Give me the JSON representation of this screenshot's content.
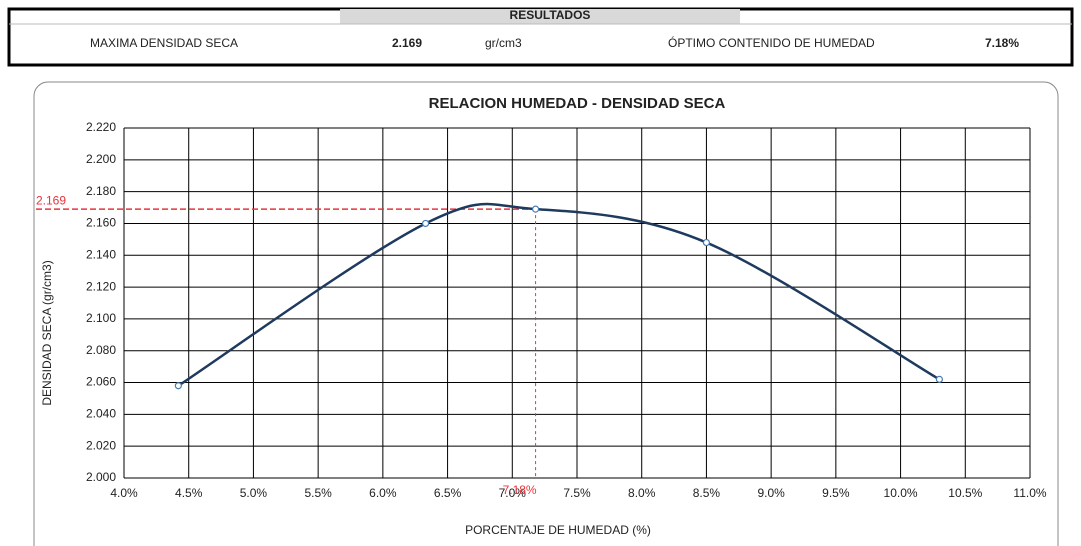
{
  "results": {
    "title": "RESULTADOS",
    "cells": [
      "MAXIMA DENSIDAD SECA",
      "2.169",
      "gr/cm3",
      "ÓPTIMO CONTENIDO DE HUMEDAD",
      "7.18%"
    ]
  },
  "chart_data": {
    "type": "line",
    "title": "RELACION HUMEDAD - DENSIDAD SECA",
    "x_label": "PORCENTAJE DE HUMEDAD  (%)",
    "y_label": "DENSIDAD SECA (gr/cm3)",
    "x": [
      4.42,
      6.33,
      7.18,
      8.5,
      10.3
    ],
    "series": [
      {
        "name": "DENSIDAD SECA",
        "color": "#1f3a5f",
        "values": [
          2.058,
          2.16,
          2.169,
          2.148,
          2.062
        ]
      }
    ],
    "reference": {
      "x": 7.18,
      "y": 2.169,
      "x_label": "7.18%",
      "y_label": "2.169",
      "color": "#e8343b"
    },
    "xlim": [
      4,
      11
    ],
    "ylim": [
      2,
      2.22
    ],
    "xticks": [
      {
        "value": 4,
        "label": "4.0%"
      },
      {
        "value": 4.5,
        "label": "4.5%"
      },
      {
        "value": 5,
        "label": "5.0%"
      },
      {
        "value": 5.5,
        "label": "5.5%"
      },
      {
        "value": 6,
        "label": "6.0%"
      },
      {
        "value": 6.5,
        "label": "6.5%"
      },
      {
        "value": 7,
        "label": "7.0%"
      },
      {
        "value": 7.5,
        "label": "7.5%"
      },
      {
        "value": 8,
        "label": "8.0%"
      },
      {
        "value": 8.5,
        "label": "8.5%"
      },
      {
        "value": 9,
        "label": "9.0%"
      },
      {
        "value": 9.5,
        "label": "9.5%"
      },
      {
        "value": 10,
        "label": "10.0%"
      },
      {
        "value": 10.5,
        "label": "10.5%"
      },
      {
        "value": 11,
        "label": "11.0%"
      }
    ],
    "yticks": [
      {
        "value": 2,
        "label": "2.000"
      },
      {
        "value": 2.02,
        "label": "2.020"
      },
      {
        "value": 2.04,
        "label": "2.040"
      },
      {
        "value": 2.06,
        "label": "2.060"
      },
      {
        "value": 2.08,
        "label": "2.080"
      },
      {
        "value": 2.1,
        "label": "2.100"
      },
      {
        "value": 2.12,
        "label": "2.120"
      },
      {
        "value": 2.14,
        "label": "2.140"
      },
      {
        "value": 2.16,
        "label": "2.160"
      },
      {
        "value": 2.18,
        "label": "2.180"
      },
      {
        "value": 2.2,
        "label": "2.200"
      },
      {
        "value": 2.22,
        "label": "2.220"
      }
    ],
    "grid": true
  }
}
